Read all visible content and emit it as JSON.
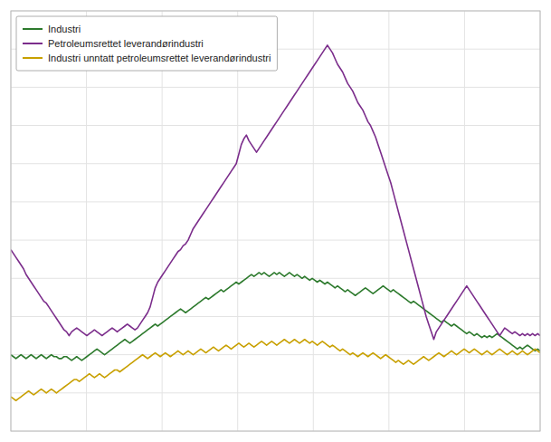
{
  "chart_data": {
    "type": "line",
    "x": [
      0,
      1,
      2,
      3,
      4,
      5,
      6,
      7,
      8,
      9,
      10,
      11,
      12,
      13,
      14,
      15,
      16,
      17,
      18,
      19,
      20,
      21,
      22,
      23,
      24,
      25,
      26,
      27,
      28,
      29,
      30,
      31,
      32,
      33,
      34,
      35,
      36,
      37,
      38,
      39,
      40,
      41,
      42,
      43,
      44,
      45,
      46,
      47,
      48,
      49,
      50,
      51,
      52,
      53,
      54,
      55,
      56,
      57,
      58,
      59,
      60,
      61,
      62,
      63,
      64,
      65,
      66,
      67,
      68,
      69,
      70,
      71,
      72,
      73,
      74,
      75,
      76,
      77,
      78,
      79,
      80,
      81,
      82,
      83,
      84,
      85,
      86,
      87,
      88,
      89,
      90,
      91,
      92,
      93,
      94,
      95,
      96,
      97,
      98,
      99,
      100,
      101,
      102,
      103,
      104,
      105,
      106,
      107,
      108,
      109,
      110,
      111,
      112,
      113,
      114,
      115,
      116,
      117,
      118,
      119,
      120,
      121,
      122,
      123,
      124,
      125,
      126,
      127,
      128,
      129,
      130,
      131,
      132,
      133,
      134,
      135,
      136,
      137,
      138,
      139,
      140,
      141,
      142,
      143,
      144,
      145,
      146,
      147,
      148,
      149,
      150,
      151,
      152,
      153,
      154,
      155,
      156,
      157,
      158,
      159,
      160,
      161,
      162,
      163,
      164,
      165,
      166,
      167,
      168,
      169,
      170,
      171,
      172,
      173,
      174,
      175,
      176,
      177,
      178,
      179,
      180,
      181,
      182,
      183,
      184,
      185,
      186,
      187,
      188,
      189,
      190,
      191,
      192,
      193,
      194,
      195,
      196,
      197,
      198,
      199,
      200,
      201,
      202,
      203,
      204,
      205,
      206,
      207,
      208,
      209
    ],
    "series": [
      {
        "name": "Industri",
        "color": "#2d7a2d",
        "values": [
          120,
          119,
          118,
          119,
          120,
          119,
          118,
          119,
          120,
          119,
          118,
          119,
          120,
          119,
          118,
          119,
          120,
          119,
          119,
          118,
          118,
          119,
          119,
          118,
          117,
          118,
          119,
          118,
          117,
          118,
          119,
          120,
          121,
          122,
          123,
          122,
          121,
          120,
          121,
          122,
          123,
          124,
          125,
          126,
          127,
          128,
          127,
          126,
          127,
          128,
          129,
          130,
          131,
          132,
          133,
          134,
          135,
          136,
          135,
          136,
          137,
          138,
          139,
          140,
          141,
          142,
          143,
          144,
          143,
          142,
          143,
          144,
          145,
          146,
          147,
          148,
          149,
          150,
          149,
          150,
          151,
          152,
          153,
          154,
          153,
          154,
          155,
          156,
          157,
          158,
          157,
          158,
          159,
          160,
          161,
          162,
          161,
          162,
          163,
          162,
          163,
          162,
          161,
          162,
          163,
          162,
          163,
          162,
          161,
          162,
          163,
          162,
          161,
          162,
          161,
          160,
          161,
          160,
          159,
          160,
          159,
          158,
          159,
          158,
          157,
          158,
          157,
          156,
          155,
          156,
          155,
          154,
          153,
          154,
          153,
          152,
          151,
          152,
          153,
          154,
          155,
          154,
          153,
          152,
          153,
          154,
          155,
          156,
          155,
          154,
          153,
          154,
          153,
          152,
          151,
          150,
          149,
          148,
          147,
          148,
          147,
          146,
          145,
          144,
          143,
          142,
          141,
          140,
          139,
          138,
          137,
          138,
          137,
          136,
          135,
          136,
          135,
          134,
          133,
          132,
          131,
          132,
          131,
          130,
          131,
          130,
          129,
          130,
          129,
          130,
          129,
          130,
          131,
          130,
          129,
          128,
          127,
          126,
          125,
          124,
          123,
          124,
          123,
          124,
          125,
          124,
          123,
          122,
          123,
          122
        ]
      },
      {
        "name": "Petroleumsrettet leverandørindustri",
        "color": "#7b2d8b",
        "values": [
          175,
          173,
          171,
          169,
          167,
          165,
          162,
          160,
          158,
          156,
          154,
          152,
          150,
          148,
          147,
          145,
          143,
          141,
          139,
          137,
          135,
          133,
          132,
          130,
          132,
          133,
          134,
          133,
          132,
          131,
          130,
          131,
          132,
          133,
          132,
          131,
          130,
          131,
          132,
          133,
          134,
          133,
          132,
          133,
          134,
          135,
          136,
          135,
          134,
          133,
          134,
          136,
          138,
          140,
          142,
          145,
          150,
          155,
          158,
          160,
          162,
          164,
          166,
          168,
          170,
          172,
          174,
          175,
          177,
          178,
          180,
          183,
          186,
          188,
          190,
          192,
          194,
          196,
          198,
          200,
          202,
          204,
          206,
          208,
          210,
          212,
          214,
          216,
          218,
          220,
          225,
          230,
          233,
          235,
          232,
          230,
          228,
          226,
          228,
          230,
          232,
          234,
          236,
          238,
          240,
          242,
          244,
          246,
          248,
          250,
          252,
          254,
          256,
          258,
          260,
          262,
          264,
          266,
          268,
          270,
          272,
          274,
          276,
          278,
          280,
          282,
          280,
          278,
          275,
          272,
          270,
          268,
          265,
          262,
          260,
          258,
          255,
          252,
          250,
          248,
          245,
          242,
          240,
          237,
          234,
          230,
          226,
          222,
          218,
          214,
          210,
          205,
          200,
          195,
          190,
          185,
          180,
          175,
          170,
          165,
          160,
          155,
          150,
          145,
          140,
          136,
          132,
          128,
          132,
          134,
          136,
          138,
          140,
          142,
          144,
          146,
          148,
          150,
          152,
          154,
          156,
          154,
          152,
          150,
          148,
          146,
          144,
          142,
          140,
          138,
          136,
          134,
          132,
          130,
          132,
          134,
          133,
          132,
          131,
          132,
          131,
          130,
          131,
          130,
          131,
          130,
          131,
          130,
          131,
          130
        ]
      },
      {
        "name": "Industri unntatt petroleumsrettet leverandørindustri",
        "color": "#c8a000",
        "values": [
          98,
          97,
          96,
          97,
          98,
          99,
          100,
          101,
          100,
          99,
          100,
          101,
          102,
          101,
          100,
          101,
          102,
          101,
          100,
          101,
          102,
          103,
          104,
          105,
          106,
          107,
          107,
          106,
          107,
          108,
          109,
          110,
          109,
          108,
          109,
          110,
          109,
          108,
          109,
          110,
          111,
          112,
          112,
          111,
          112,
          113,
          114,
          115,
          116,
          117,
          118,
          119,
          120,
          119,
          118,
          119,
          120,
          121,
          120,
          119,
          120,
          121,
          120,
          119,
          120,
          121,
          122,
          121,
          120,
          121,
          122,
          121,
          120,
          121,
          122,
          123,
          122,
          121,
          122,
          123,
          124,
          123,
          122,
          123,
          124,
          125,
          124,
          123,
          124,
          125,
          126,
          125,
          124,
          125,
          126,
          125,
          124,
          125,
          126,
          127,
          126,
          125,
          126,
          127,
          126,
          125,
          126,
          127,
          128,
          127,
          126,
          127,
          128,
          127,
          126,
          127,
          128,
          127,
          126,
          127,
          126,
          125,
          126,
          127,
          126,
          125,
          124,
          125,
          124,
          123,
          122,
          123,
          122,
          121,
          120,
          121,
          120,
          119,
          120,
          121,
          120,
          119,
          120,
          121,
          120,
          119,
          118,
          119,
          120,
          119,
          118,
          117,
          116,
          117,
          116,
          115,
          116,
          117,
          116,
          115,
          116,
          117,
          118,
          119,
          118,
          117,
          118,
          119,
          120,
          121,
          120,
          119,
          120,
          121,
          122,
          121,
          120,
          121,
          122,
          123,
          122,
          121,
          122,
          123,
          122,
          121,
          120,
          121,
          122,
          121,
          120,
          121,
          122,
          123,
          122,
          121,
          120,
          121,
          122,
          121,
          120,
          121,
          122,
          121,
          120,
          121,
          122,
          123,
          122,
          121
        ]
      }
    ],
    "xlim": [
      0,
      209
    ],
    "ylim": [
      80,
      300
    ],
    "xticks": [
      0,
      29.857142857142858,
      59.714285714285715,
      89.57142857142857,
      119.42857142857143,
      149.28571428571428,
      179.14285714285714,
      209
    ],
    "yticks": [
      80,
      100,
      120,
      140,
      160,
      180,
      200,
      220,
      240,
      260,
      280,
      300
    ],
    "grid": true,
    "tick_labels": false,
    "legend": "upper left"
  }
}
